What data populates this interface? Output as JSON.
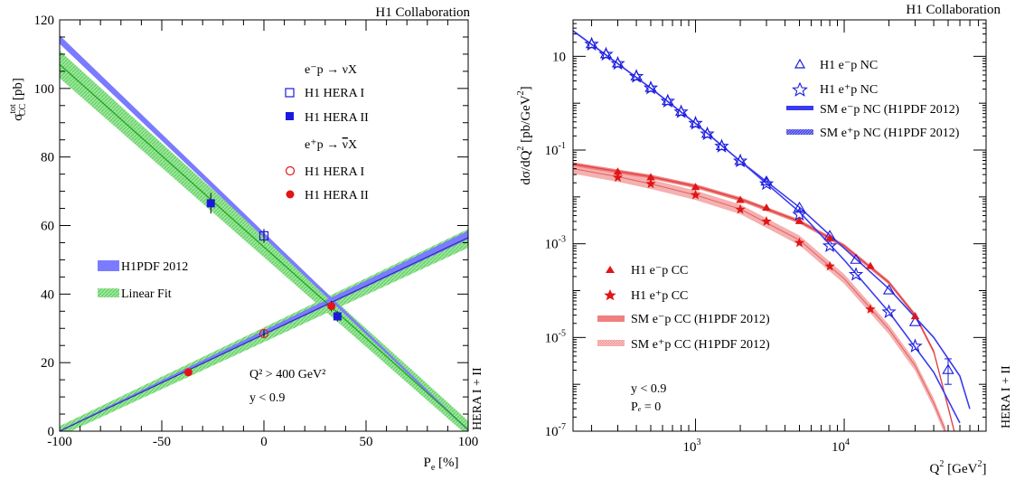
{
  "left": {
    "collab": "H1 Collaboration",
    "side_label": "HERA I + II",
    "ylabel_main": "σ",
    "ylabel_sup": "tot",
    "ylabel_sub": "CC",
    "ylabel_unit": " [pb]",
    "xlabel_main": "P",
    "xlabel_sub": "e",
    "xlabel_unit": " [%]",
    "leg_em_header": "e⁻p → νX",
    "leg_ep_header_pre": "e⁺p → ",
    "leg_ep_header_nu": "ν",
    "leg_ep_header_post": "X",
    "leg_hera1": "H1 HERA I",
    "leg_hera2": "H1 HERA II",
    "leg_pdf": "H1PDF 2012",
    "leg_lin": "Linear Fit",
    "cut_q2": "Q² > 400 GeV²",
    "cut_y": "y < 0.9",
    "colors": {
      "blue": "#1a1adc",
      "red": "#e11515",
      "pdfband": "#7b7bff",
      "linband": "#9be89b",
      "green": "#1aa51a"
    },
    "chart_data": {
      "type": "scatter",
      "xlim": [
        -100,
        100
      ],
      "ylim": [
        0,
        120
      ],
      "xticks": [
        "-100",
        "-50",
        "0",
        "50",
        "100"
      ],
      "yticks": [
        "0",
        "20",
        "40",
        "60",
        "80",
        "100",
        "120"
      ],
      "series": [
        {
          "name": "e⁻p H1 HERA I",
          "x": [
            0
          ],
          "y": [
            57
          ],
          "err": [
            2
          ]
        },
        {
          "name": "e⁻p H1 HERA II",
          "x": [
            -26,
            36
          ],
          "y": [
            66.5,
            33.5
          ],
          "err": [
            3,
            1.5
          ]
        },
        {
          "name": "e⁺p H1 HERA I",
          "x": [
            0
          ],
          "y": [
            28.5
          ],
          "err": [
            1
          ]
        },
        {
          "name": "e⁺p H1 HERA II",
          "x": [
            -37,
            33
          ],
          "y": [
            17.2,
            36.5
          ],
          "err": [
            1,
            1.5
          ]
        }
      ],
      "bands": {
        "em_pdf": {
          "x": [
            -100,
            100
          ],
          "lo": [
            113,
            0
          ],
          "hi": [
            115.5,
            0.5
          ]
        },
        "em_lin": {
          "x": [
            -100,
            100
          ],
          "lo": [
            103,
            -1.5
          ],
          "hi": [
            111,
            3
          ]
        },
        "ep_pdf": {
          "x": [
            -100,
            100
          ],
          "lo": [
            0,
            56
          ],
          "hi": [
            0.3,
            58.5
          ]
        },
        "ep_lin": {
          "x": [
            -100,
            100
          ],
          "lo": [
            -1.5,
            53.5
          ],
          "hi": [
            1.5,
            59
          ]
        }
      },
      "lines": {
        "em_fit": {
          "x": [
            -100,
            100
          ],
          "y": [
            107,
            0.5
          ]
        },
        "ep_fit": {
          "x": [
            -100,
            100
          ],
          "y": [
            0,
            56.5
          ]
        }
      }
    }
  },
  "right": {
    "collab": "H1 Collaboration",
    "side_label": "HERA I + II",
    "ylabel_main": "dσ/dQ",
    "ylabel_sup": "2",
    "ylabel_unit": " [pb/GeV",
    "ylabel_sup2": "2",
    "ylabel_end": "]",
    "xlabel_main": "Q",
    "xlabel_sup": "2",
    "xlabel_unit": " [GeV",
    "xlabel_sup2": "2",
    "xlabel_end": "]",
    "leg_nc_em": "H1 e⁻p NC",
    "leg_nc_ep": "H1 e⁺p NC",
    "leg_sm_nc_em": "SM e⁻p NC (H1PDF 2012)",
    "leg_sm_nc_ep": "SM e⁺p NC (H1PDF 2012)",
    "leg_cc_em": "H1 e⁻p CC",
    "leg_cc_ep": "H1 e⁺p CC",
    "leg_sm_cc_em": "SM e⁻p CC (H1PDF 2012)",
    "leg_sm_cc_ep": "SM e⁺p CC (H1PDF 2012)",
    "cut_y": "y < 0.9",
    "cut_pe": "Pₑ = 0",
    "ytick_labels": [
      "10",
      "10",
      "10",
      "10",
      "10"
    ],
    "ytick_exps": [
      "-7",
      "-5",
      "-3",
      "-1",
      ""
    ],
    "xtick_labels": [
      "10",
      "10"
    ],
    "xtick_exps": [
      "3",
      "4"
    ],
    "colors": {
      "blue": "#1a1adc",
      "red": "#e11515",
      "bandred": "#f08080",
      "bandpink": "#f5b0b0",
      "bandblue": "#3a3af0"
    },
    "chart_data": {
      "type": "scatter",
      "xscale": "log",
      "yscale": "log",
      "xlim": [
        150,
        90000
      ],
      "ylim": [
        1e-07,
        60
      ],
      "series": [
        {
          "name": "H1 e⁻p NC",
          "x": [
            200,
            250,
            300,
            400,
            500,
            650,
            800,
            1000,
            1200,
            1500,
            2000,
            3000,
            5000,
            8000,
            12000,
            20000,
            30000,
            50000
          ],
          "y": [
            18,
            11,
            7,
            3.7,
            2.1,
            1.1,
            0.65,
            0.37,
            0.22,
            0.12,
            0.058,
            0.021,
            0.0058,
            0.00145,
            0.00045,
            0.0001,
            2.1e-05,
            2e-06
          ]
        },
        {
          "name": "H1 e⁺p NC",
          "x": [
            200,
            250,
            300,
            400,
            500,
            650,
            800,
            1000,
            1200,
            1500,
            2000,
            3000,
            5000,
            8000,
            12000,
            20000,
            30000
          ],
          "y": [
            18,
            11,
            7,
            3.7,
            2.1,
            1.1,
            0.65,
            0.37,
            0.22,
            0.12,
            0.058,
            0.019,
            0.0042,
            0.0009,
            0.00022,
            3.5e-05,
            6.5e-06
          ]
        },
        {
          "name": "H1 e⁻p CC",
          "x": [
            300,
            500,
            1000,
            2000,
            3000,
            5000,
            8000,
            15000,
            30000
          ],
          "y": [
            0.034,
            0.026,
            0.016,
            0.0085,
            0.0058,
            0.003,
            0.0013,
            0.00033,
            2.8e-05
          ]
        },
        {
          "name": "H1 e⁺p CC",
          "x": [
            300,
            500,
            1000,
            2000,
            3000,
            5000,
            8000,
            15000
          ],
          "y": [
            0.026,
            0.019,
            0.011,
            0.0054,
            0.003,
            0.00105,
            0.00033,
            4e-05
          ]
        }
      ],
      "curves": {
        "sm_nc_em": {
          "x": [
            150,
            200,
            300,
            500,
            1000,
            2000,
            5000,
            10000,
            20000,
            40000,
            60000,
            70000
          ],
          "y": [
            35,
            18,
            7,
            2.1,
            0.37,
            0.058,
            0.006,
            0.0008,
            0.00011,
            1e-05,
            1.5e-06,
            3e-07
          ]
        },
        "sm_nc_ep": {
          "x": [
            150,
            200,
            300,
            500,
            1000,
            2000,
            5000,
            10000,
            20000,
            40000,
            60000
          ],
          "y": [
            35,
            18,
            7,
            2.1,
            0.37,
            0.058,
            0.0048,
            0.00045,
            3.5e-05,
            1.8e-06,
            1.5e-07
          ]
        },
        "sm_cc_em": {
          "x": [
            150,
            300,
            500,
            1000,
            2000,
            5000,
            10000,
            20000,
            30000,
            40000,
            55000
          ],
          "y": [
            0.05,
            0.035,
            0.027,
            0.017,
            0.009,
            0.003,
            0.0009,
            0.00015,
            3e-05,
            5e-06,
            1e-07
          ]
        },
        "sm_cc_ep": {
          "x": [
            150,
            300,
            500,
            1000,
            2000,
            5000,
            10000,
            20000,
            30000,
            40000,
            48000
          ],
          "y": [
            0.04,
            0.027,
            0.019,
            0.011,
            0.0055,
            0.0012,
            0.00018,
            1.5e-05,
            2.5e-06,
            4e-07,
            1e-07
          ]
        }
      }
    }
  }
}
